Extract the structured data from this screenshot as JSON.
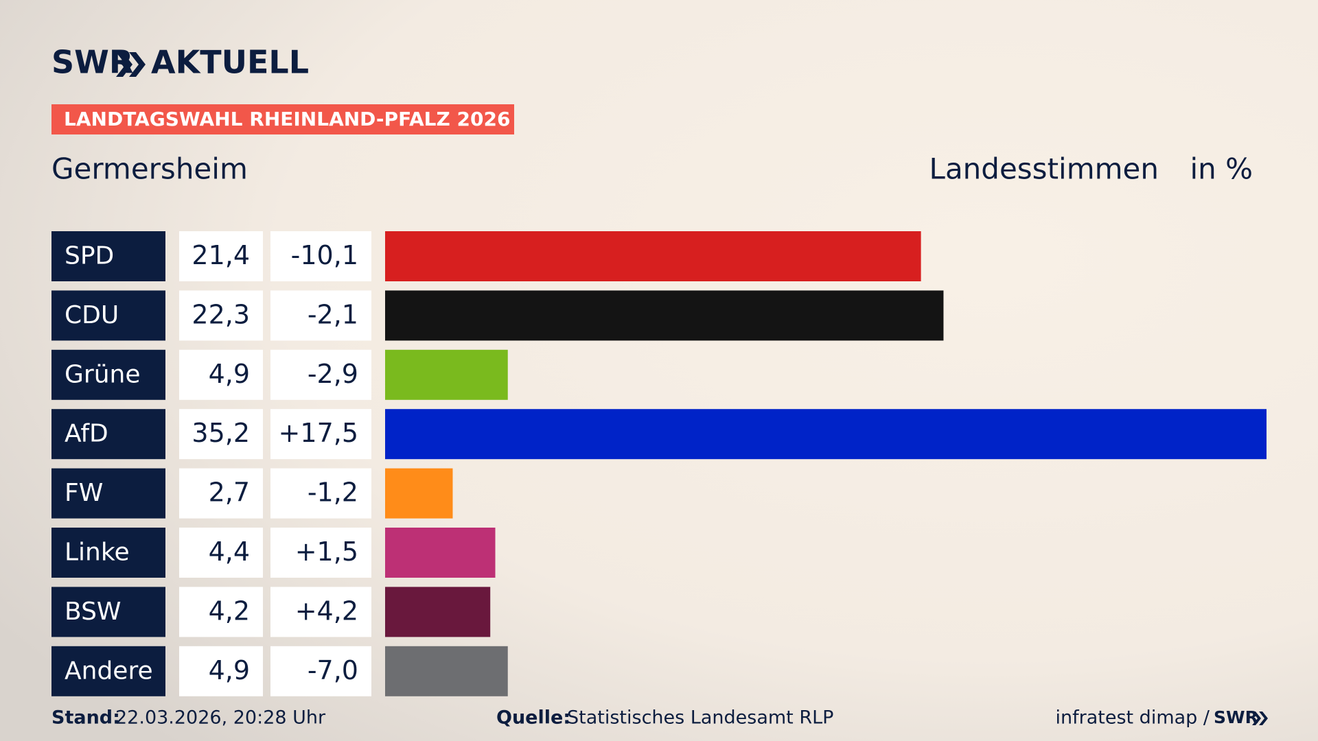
{
  "header": {
    "logo": "SWR",
    "logo_suffix": "AKTUELL",
    "tag": "LANDTAGSWAHL RHEINLAND-PFALZ 2026"
  },
  "chart_data": {
    "type": "bar",
    "subtitle": "Germersheim",
    "measure": "Landesstimmen",
    "unit": "in %",
    "categories": [
      "SPD",
      "CDU",
      "Grüne",
      "AfD",
      "FW",
      "Linke",
      "BSW",
      "Andere"
    ],
    "values": [
      21.4,
      22.3,
      4.9,
      35.2,
      2.7,
      4.4,
      4.2,
      4.9
    ],
    "value_labels": [
      "21,4",
      "22,3",
      "4,9",
      "35,2",
      "2,7",
      "4,4",
      "4,2",
      "4,9"
    ],
    "changes": [
      -10.1,
      -2.1,
      -2.9,
      17.5,
      -1.2,
      1.5,
      4.2,
      -7.0
    ],
    "change_labels": [
      "-10,1",
      "-2,1",
      "-2,9",
      "+17,5",
      "-1,2",
      "+1,5",
      "+4,2",
      "-7,0"
    ],
    "colors": [
      "#d71f1f",
      "#141414",
      "#7aba1e",
      "#0023c8",
      "#ff8c19",
      "#bd3075",
      "#69183d",
      "#6d6e71"
    ],
    "xlim": [
      0,
      35.2
    ]
  },
  "footer": {
    "stand_label": "Stand:",
    "stand": "22.03.2026, 20:28 Uhr",
    "source_label": "Quelle:",
    "source": "Statistisches Landesamt RLP",
    "credit": "infratest dimap /",
    "credit_logo": "SWR"
  }
}
